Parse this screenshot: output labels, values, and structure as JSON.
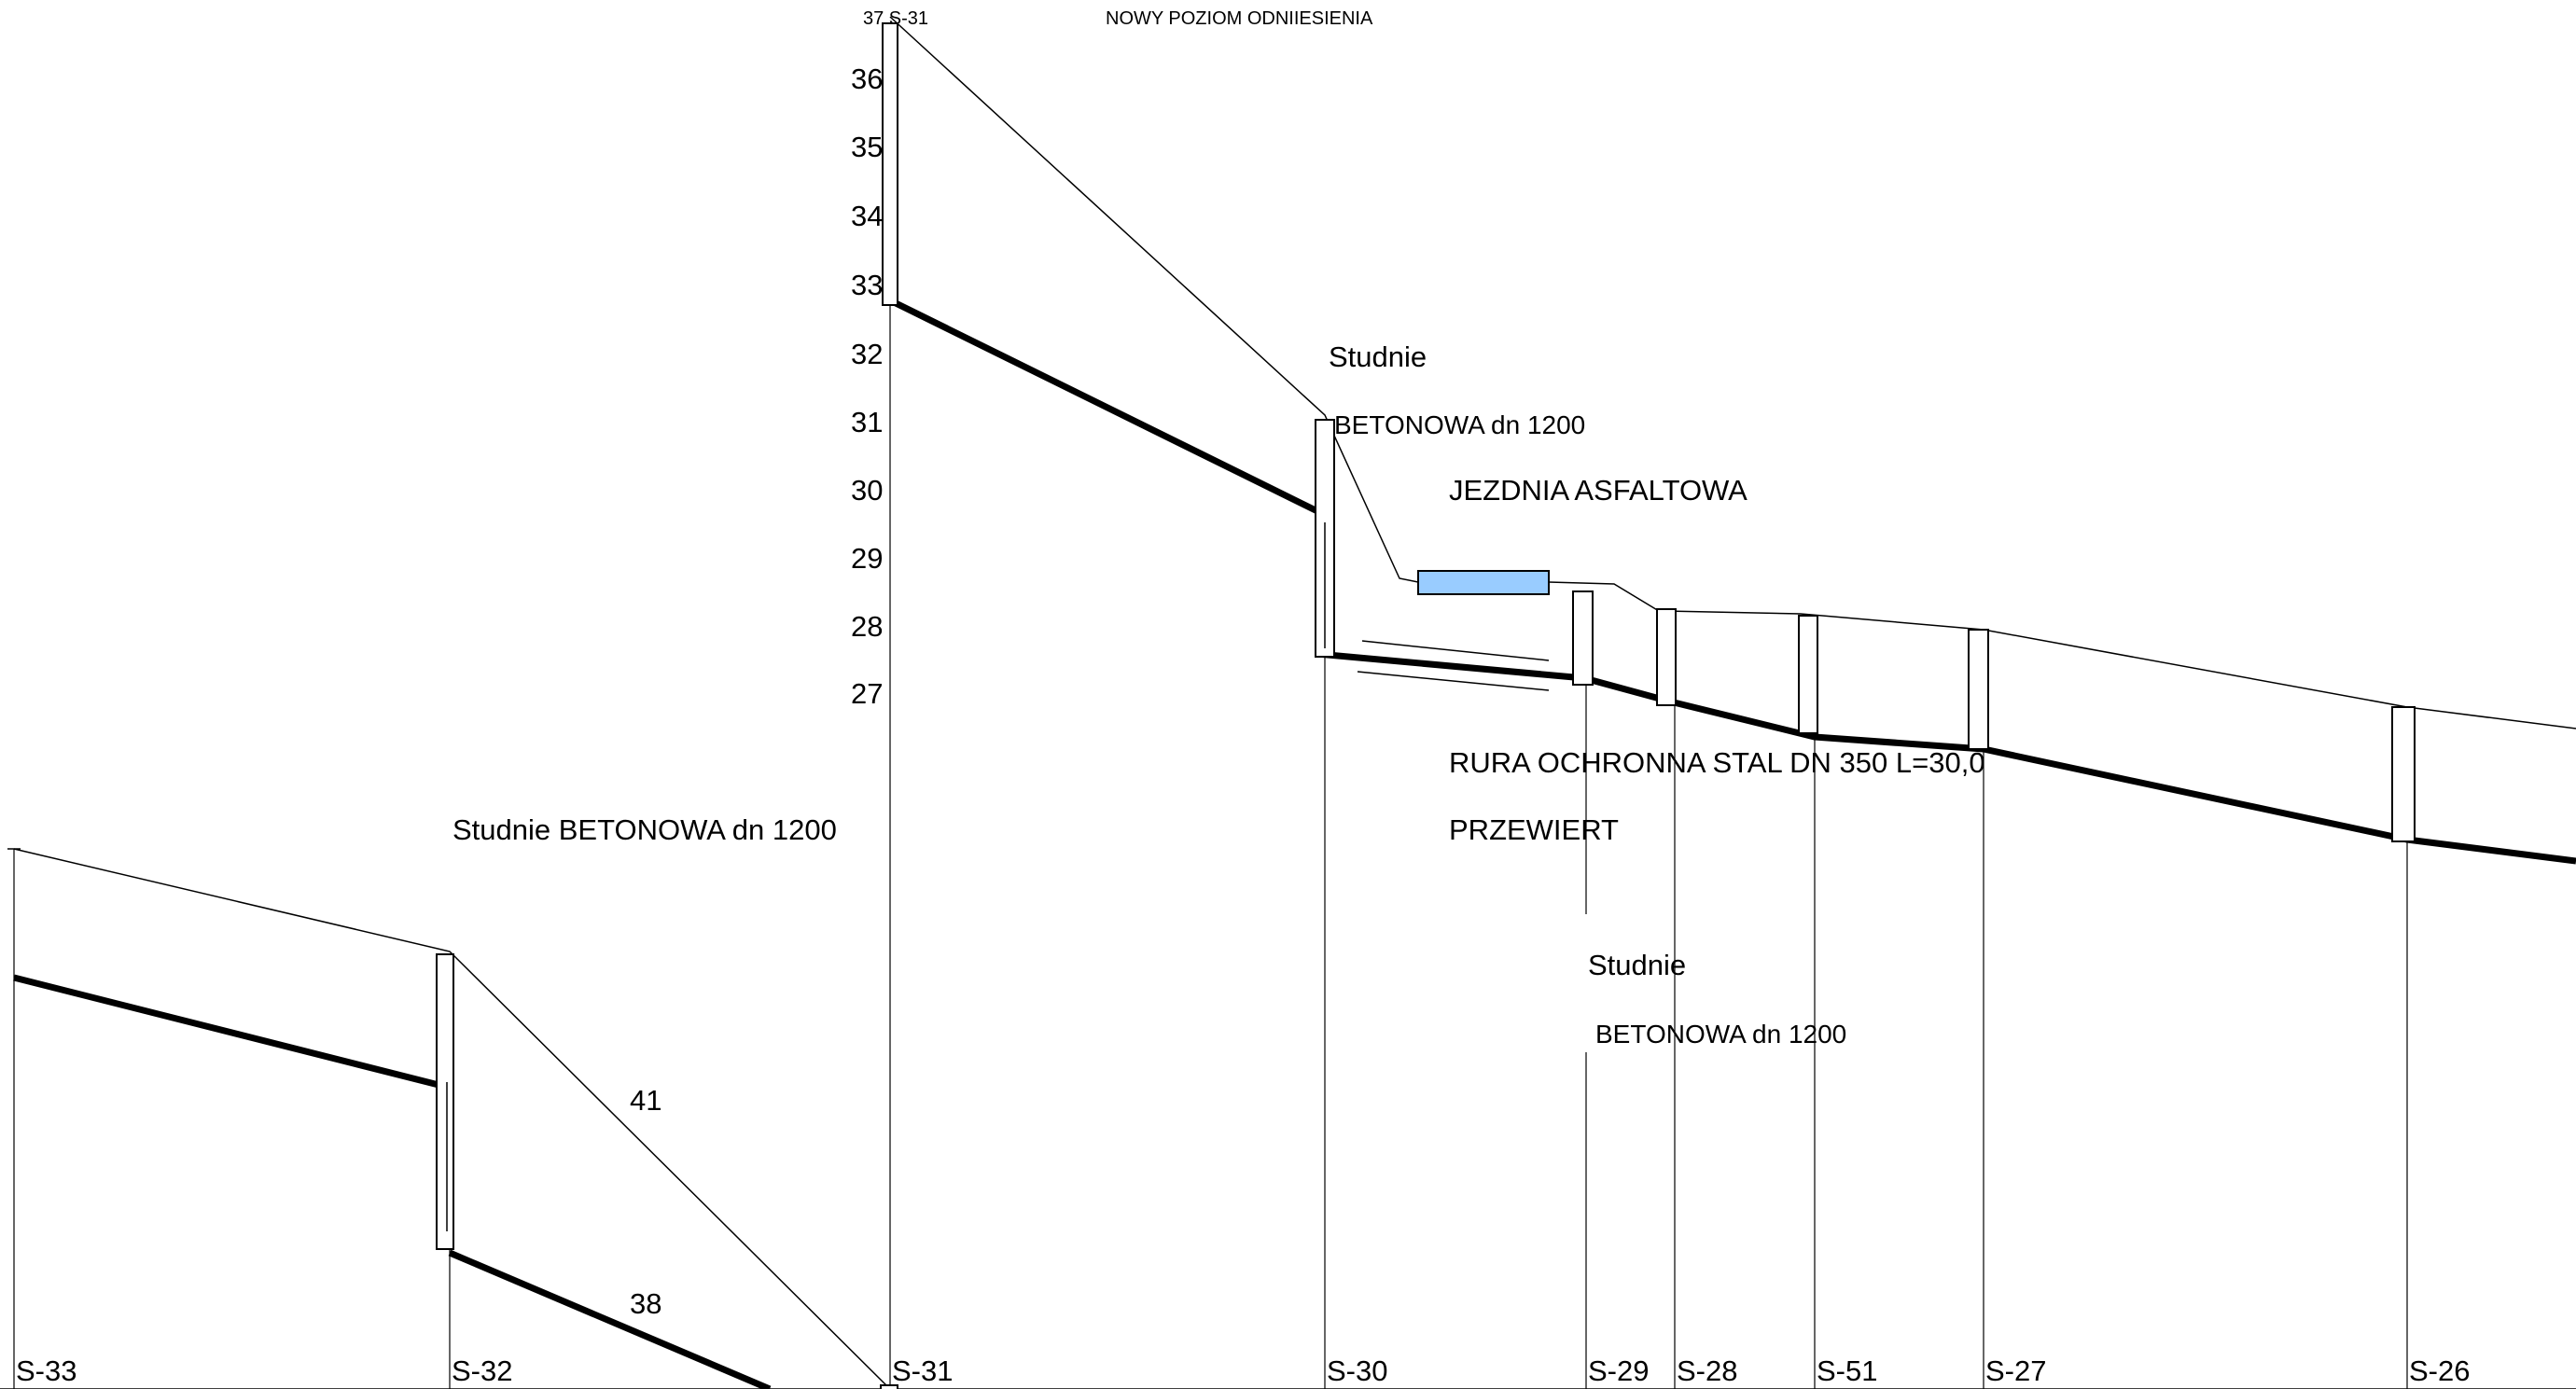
{
  "header": {
    "top_left_label": "37 S-31",
    "reference_note": "NOWY POZIOM  ODNIIESIENIA"
  },
  "elevation_scale": [
    "36",
    "35",
    "34",
    "33",
    "32",
    "31",
    "30",
    "29",
    "28",
    "27"
  ],
  "annotations": {
    "well_left": "Studnie  BETONOWA  dn 1200",
    "well_s30_line1": "Studnie",
    "well_s30_line2": "BETONOWA  dn 1200",
    "road": "JEZDNIA ASFALTOWA",
    "pipe": "RURA  OCHRONNA STAL  DN 350  L=30,0",
    "drilling": "PRZEWIERT",
    "well_s29_line1": "Studnie",
    "well_s29_line2": "BETONOWA  dn 1200",
    "elev_41": "41",
    "elev_38": "38"
  },
  "stations": [
    "S-33",
    "S-32",
    "S-31",
    "S-30",
    "S-29",
    "S-28",
    "S-51",
    "S-27",
    "S-26"
  ],
  "colors": {
    "line": "#000000",
    "protective_pipe_fill": "#99ccff",
    "background": "#ffffff"
  }
}
